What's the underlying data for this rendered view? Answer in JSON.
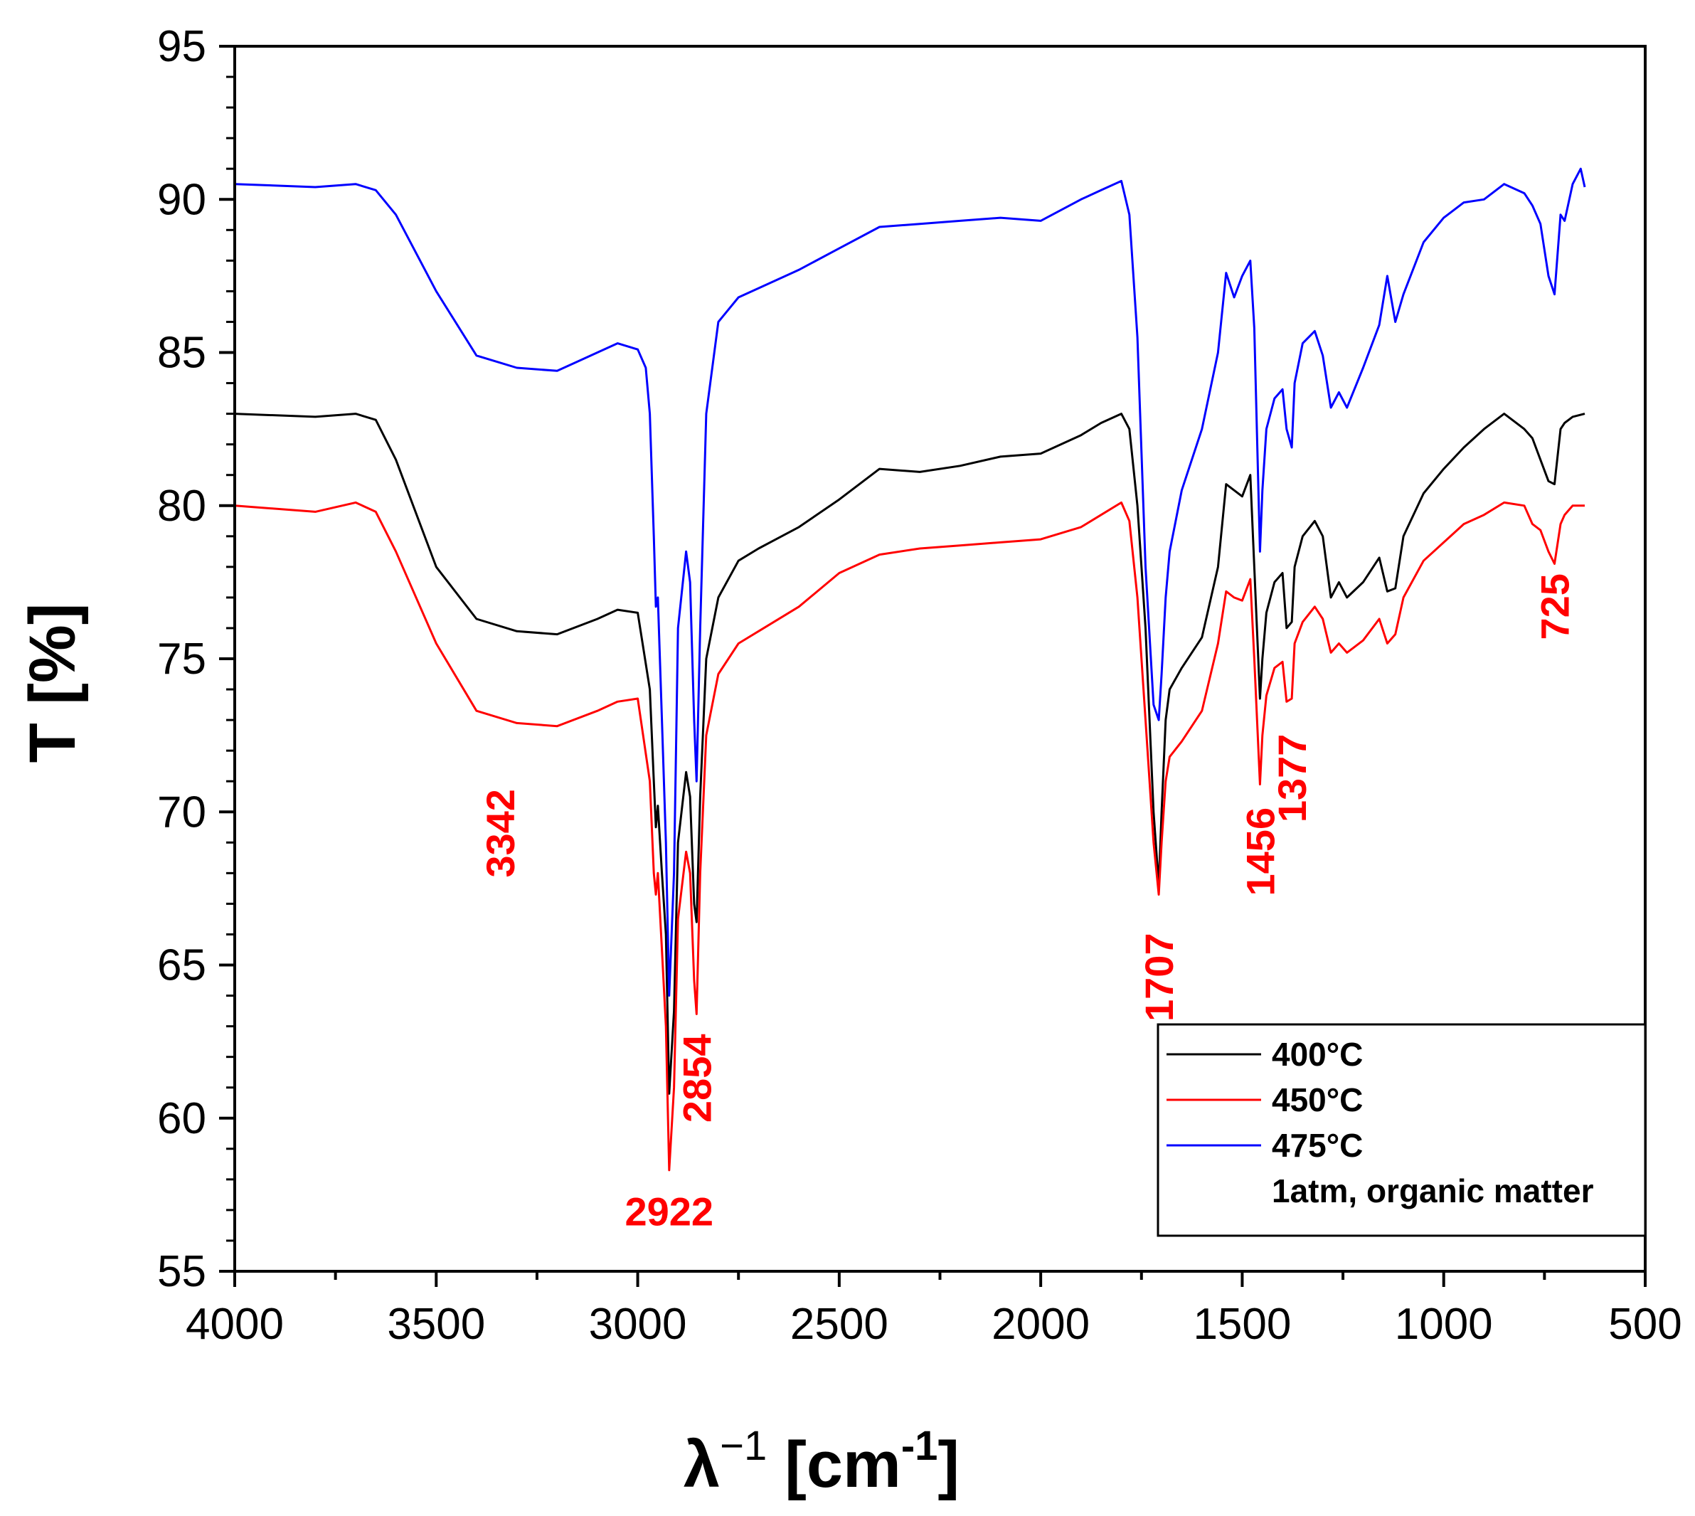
{
  "chart_data": {
    "type": "line",
    "title": "",
    "xlabel_main": "λ",
    "xlabel_sup": "−1",
    "xlabel_unit": "[cm",
    "xlabel_unit_sup": "-1",
    "xlabel_close": "]",
    "ylabel": "T [%]",
    "xlim": [
      4000,
      500
    ],
    "ylim": [
      55,
      95
    ],
    "x_ticks": [
      4000,
      3500,
      3000,
      2500,
      2000,
      1500,
      1000,
      500
    ],
    "x_tick_labels": [
      "4000",
      "3500",
      "3000",
      "2500",
      "2000",
      "1500",
      "1000",
      "500"
    ],
    "y_ticks": [
      55,
      60,
      65,
      70,
      75,
      80,
      85,
      90,
      95
    ],
    "y_tick_labels": [
      "55",
      "60",
      "65",
      "70",
      "75",
      "80",
      "85",
      "90",
      "95"
    ],
    "legend_placement": "bottom-right",
    "legend_note": "1atm, organic matter",
    "series": [
      {
        "name": "400°C",
        "color": "#000000",
        "x": [
          4000,
          3800,
          3700,
          3650,
          3600,
          3500,
          3400,
          3300,
          3200,
          3100,
          3050,
          3000,
          2970,
          2960,
          2955,
          2950,
          2940,
          2930,
          2922,
          2910,
          2900,
          2880,
          2870,
          2860,
          2854,
          2845,
          2830,
          2800,
          2750,
          2700,
          2600,
          2500,
          2400,
          2300,
          2200,
          2100,
          2000,
          1900,
          1850,
          1800,
          1780,
          1760,
          1740,
          1720,
          1707,
          1700,
          1690,
          1680,
          1650,
          1600,
          1560,
          1540,
          1520,
          1500,
          1480,
          1470,
          1456,
          1450,
          1440,
          1420,
          1400,
          1390,
          1377,
          1370,
          1350,
          1320,
          1300,
          1280,
          1260,
          1240,
          1200,
          1160,
          1140,
          1120,
          1100,
          1050,
          1000,
          950,
          900,
          850,
          800,
          780,
          760,
          740,
          725,
          710,
          700,
          680,
          650
        ],
        "values": [
          83,
          82.9,
          83,
          82.8,
          81.5,
          78,
          76.3,
          75.9,
          75.8,
          76.3,
          76.6,
          76.5,
          74,
          71,
          69.5,
          70.2,
          68,
          66,
          60.8,
          63.5,
          69,
          71.3,
          70.5,
          67,
          66.4,
          70.5,
          75,
          77,
          78.2,
          78.6,
          79.3,
          80.2,
          81.2,
          81.1,
          81.3,
          81.6,
          81.7,
          82.3,
          82.7,
          83,
          82.5,
          80,
          76,
          70,
          67.6,
          70,
          73,
          74,
          74.7,
          75.7,
          78,
          80.7,
          80.5,
          80.3,
          81,
          78,
          73.7,
          75,
          76.5,
          77.5,
          77.8,
          76,
          76.2,
          78,
          79,
          79.5,
          79,
          77,
          77.5,
          77,
          77.5,
          78.3,
          77.2,
          77.3,
          79,
          80.4,
          81.2,
          81.9,
          82.5,
          83,
          82.5,
          82.2,
          81.5,
          80.8,
          80.7,
          82.5,
          82.7,
          82.9,
          83
        ]
      },
      {
        "name": "450°C",
        "color": "#ff0000",
        "x": [
          4000,
          3800,
          3700,
          3650,
          3600,
          3500,
          3400,
          3300,
          3200,
          3100,
          3050,
          3000,
          2970,
          2960,
          2955,
          2950,
          2940,
          2930,
          2922,
          2910,
          2900,
          2880,
          2870,
          2860,
          2854,
          2845,
          2830,
          2800,
          2750,
          2700,
          2600,
          2500,
          2400,
          2300,
          2200,
          2100,
          2000,
          1900,
          1850,
          1800,
          1780,
          1760,
          1740,
          1720,
          1707,
          1700,
          1690,
          1680,
          1650,
          1600,
          1560,
          1540,
          1520,
          1500,
          1480,
          1470,
          1456,
          1450,
          1440,
          1420,
          1400,
          1390,
          1377,
          1370,
          1350,
          1320,
          1300,
          1280,
          1260,
          1240,
          1200,
          1160,
          1140,
          1120,
          1100,
          1050,
          1000,
          950,
          900,
          850,
          800,
          780,
          760,
          740,
          725,
          710,
          700,
          680,
          650
        ],
        "values": [
          80,
          79.8,
          80.1,
          79.8,
          78.5,
          75.5,
          73.3,
          72.9,
          72.8,
          73.3,
          73.6,
          73.7,
          71,
          68,
          67.3,
          68,
          65.5,
          63,
          58.3,
          61,
          66.5,
          68.7,
          68,
          64.5,
          63.4,
          68,
          72.5,
          74.5,
          75.5,
          75.9,
          76.7,
          77.8,
          78.4,
          78.6,
          78.7,
          78.8,
          78.9,
          79.3,
          79.7,
          80.1,
          79.5,
          77,
          73,
          69,
          67.3,
          69,
          71,
          71.8,
          72.3,
          73.3,
          75.5,
          77.2,
          77,
          76.9,
          77.6,
          75,
          70.9,
          72.5,
          73.8,
          74.7,
          74.9,
          73.6,
          73.7,
          75.5,
          76.2,
          76.7,
          76.3,
          75.2,
          75.5,
          75.2,
          75.6,
          76.3,
          75.5,
          75.8,
          77,
          78.2,
          78.8,
          79.4,
          79.7,
          80.1,
          80,
          79.4,
          79.2,
          78.5,
          78.1,
          79.4,
          79.7,
          80,
          80
        ]
      },
      {
        "name": "475°C",
        "color": "#0000ff",
        "x": [
          4000,
          3800,
          3700,
          3650,
          3600,
          3500,
          3400,
          3300,
          3200,
          3100,
          3050,
          3000,
          2980,
          2970,
          2960,
          2955,
          2950,
          2940,
          2930,
          2922,
          2910,
          2900,
          2880,
          2870,
          2860,
          2854,
          2845,
          2830,
          2800,
          2750,
          2700,
          2600,
          2500,
          2400,
          2300,
          2200,
          2100,
          2000,
          1900,
          1850,
          1800,
          1780,
          1760,
          1740,
          1720,
          1707,
          1700,
          1690,
          1680,
          1650,
          1600,
          1560,
          1540,
          1520,
          1500,
          1480,
          1470,
          1456,
          1450,
          1440,
          1420,
          1400,
          1390,
          1377,
          1370,
          1350,
          1320,
          1300,
          1280,
          1260,
          1240,
          1200,
          1160,
          1140,
          1120,
          1100,
          1050,
          1000,
          950,
          900,
          850,
          800,
          780,
          760,
          740,
          725,
          710,
          700,
          680,
          660,
          650
        ],
        "values": [
          90.5,
          90.4,
          90.5,
          90.3,
          89.5,
          87,
          84.9,
          84.5,
          84.4,
          85,
          85.3,
          85.1,
          84.5,
          83,
          79,
          76.7,
          77,
          73,
          69,
          64,
          68,
          76,
          78.5,
          77.5,
          73,
          71,
          76,
          83,
          86,
          86.8,
          87.1,
          87.7,
          88.4,
          89.1,
          89.2,
          89.3,
          89.4,
          89.3,
          90,
          90.3,
          90.6,
          89.5,
          85.5,
          78,
          73.5,
          73,
          74.5,
          77,
          78.5,
          80.5,
          82.5,
          85,
          87.6,
          86.8,
          87.5,
          88,
          85.8,
          78.5,
          80.5,
          82.5,
          83.5,
          83.8,
          82.5,
          81.9,
          84,
          85.3,
          85.7,
          84.9,
          83.2,
          83.7,
          83.2,
          84.5,
          85.9,
          87.5,
          86,
          86.9,
          88.6,
          89.4,
          89.9,
          90,
          90.5,
          90.2,
          89.8,
          89.2,
          87.5,
          86.9,
          89.5,
          89.3,
          90.5,
          91,
          90.4
        ]
      }
    ],
    "annotations": [
      {
        "text": "3342",
        "x": 3342,
        "y": 69.3,
        "rotated": true
      },
      {
        "text": "2922",
        "x": 2922,
        "y": 56.5,
        "rotated": false
      },
      {
        "text": "2854",
        "x": 2854,
        "y": 61.3,
        "rotated": true
      },
      {
        "text": "1707",
        "x": 1707,
        "y": 64.6,
        "rotated": true
      },
      {
        "text": "1456",
        "x": 1456,
        "y": 68.7,
        "rotated": true
      },
      {
        "text": "1377",
        "x": 1377,
        "y": 71.1,
        "rotated": true
      },
      {
        "text": "725",
        "x": 725,
        "y": 76.7,
        "rotated": true
      }
    ],
    "annotation_color": "#ff0000"
  }
}
